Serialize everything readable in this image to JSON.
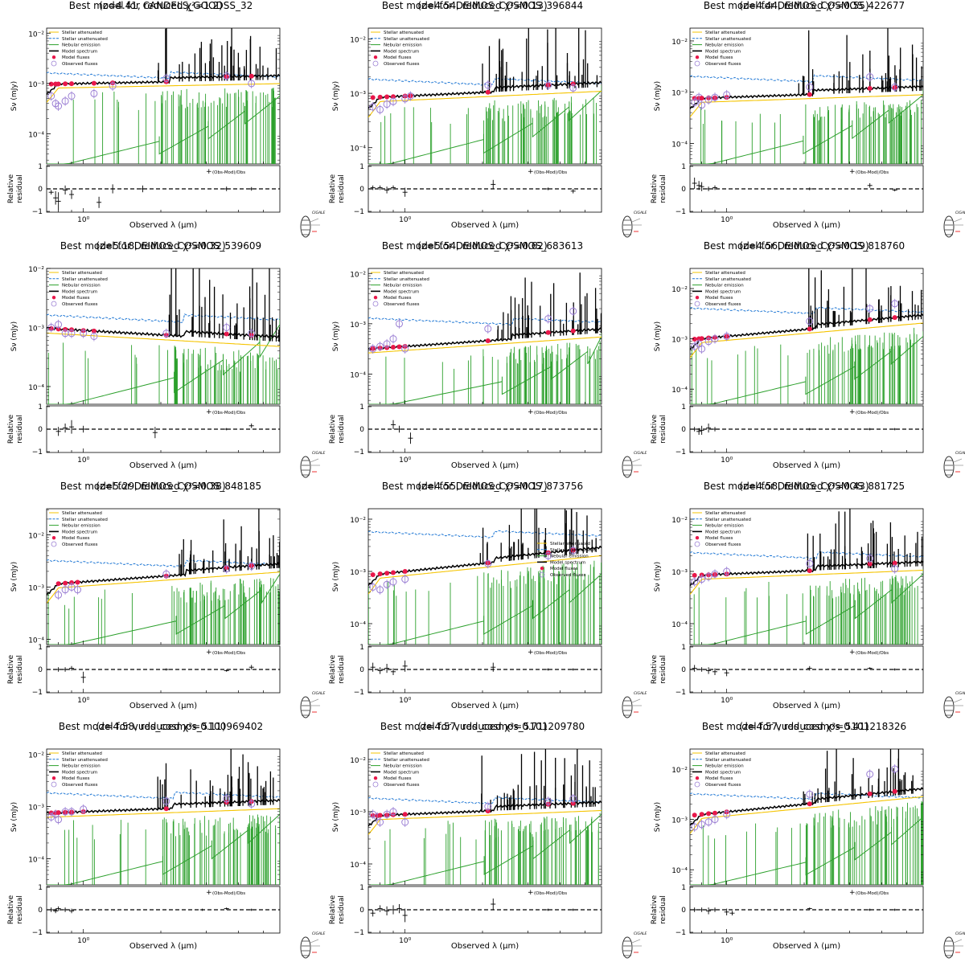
{
  "figure": {
    "legend": {
      "stellar_attenuated": "Stellar attenuated",
      "stellar_unattenuated": "Stellar unattenuated",
      "nebular_emission": "Nebular emission",
      "model_spectrum": "Model spectrum",
      "model_fluxes": "Model fluxes",
      "observed_fluxes": "Observed fluxes",
      "residual_key": "(Obs-Mod)/Obs"
    },
    "colors": {
      "stellar_attenuated": "#f5c400",
      "stellar_unattenuated": "#1f77d4",
      "nebular_emission": "#2ca02c",
      "model_spectrum": "#000000",
      "model_fluxes": "#e8174a",
      "observed_fluxes": "#9b7fd4"
    },
    "axes": {
      "ylabel_top": "Sν (mJy)",
      "ylabel_bottom_1": "Relative",
      "ylabel_bottom_2": "residual",
      "xlabel": "Observed λ (μm)",
      "x_tick": "10⁰",
      "x_scale": "log",
      "y_scale": "log",
      "resid_ticks": [
        "1",
        "0",
        "−1"
      ]
    },
    "logo": "CIGALE"
  },
  "chart_data": [
    {
      "type": "line",
      "title": "Best model for CANDELS_GOODSS_32",
      "subtitle": "(z=4.41, reduced χ²=1.2)",
      "z": 4.41,
      "chi2": 1.2,
      "yticks": [
        "10⁻²",
        "10⁻³",
        "10⁻⁴"
      ],
      "ylim_log": [
        -4.6,
        -1.9
      ],
      "continuum_log": -3.0,
      "slope": 0.1,
      "unatt_log": -2.8,
      "blue_cut": true,
      "legend_pos": "top-left",
      "obs": [
        [
          0.75,
          -3.25
        ],
        [
          0.78,
          -3.4
        ],
        [
          0.8,
          -3.45
        ],
        [
          0.85,
          -3.35
        ],
        [
          0.9,
          -3.25
        ],
        [
          1.1,
          -3.2
        ],
        [
          1.3,
          -3.05
        ],
        [
          2.1,
          -2.9
        ],
        [
          3.6,
          -2.85
        ],
        [
          4.5,
          -3.0
        ]
      ],
      "resid": [
        [
          0.75,
          -0.15,
          0.1
        ],
        [
          0.78,
          -0.4,
          0.3
        ],
        [
          0.8,
          -0.55,
          0.4
        ],
        [
          0.85,
          -0.05,
          0.2
        ],
        [
          0.9,
          -0.25,
          0.2
        ],
        [
          1.15,
          -0.6,
          0.25
        ],
        [
          1.3,
          0.0,
          0.2
        ],
        [
          1.7,
          0.0,
          0.15
        ],
        [
          3.6,
          0.0,
          0.1
        ],
        [
          4.5,
          0.0,
          0.08
        ]
      ]
    },
    {
      "type": "line",
      "title": "Best model for DEIMOS_COSMOS_396844",
      "subtitle": "(z=4.54, reduced χ²=0.13)",
      "z": 4.54,
      "chi2": 0.13,
      "yticks": [
        "10⁻²",
        "10⁻³",
        "10⁻⁴"
      ],
      "ylim_log": [
        -4.3,
        -1.8
      ],
      "continuum_log": -3.05,
      "slope": 0.22,
      "unatt_log": -2.75,
      "blue_cut": true,
      "legend_pos": "top-left",
      "obs": [
        [
          0.75,
          -3.25
        ],
        [
          0.8,
          -3.3
        ],
        [
          0.85,
          -3.2
        ],
        [
          0.9,
          -3.15
        ],
        [
          1.0,
          -3.1
        ],
        [
          1.05,
          -3.05
        ],
        [
          2.1,
          -2.85
        ],
        [
          3.6,
          -2.85
        ],
        [
          4.5,
          -2.9
        ]
      ],
      "resid": [
        [
          0.75,
          0.05,
          0.1
        ],
        [
          0.8,
          0.05,
          0.1
        ],
        [
          0.85,
          -0.05,
          0.15
        ],
        [
          0.9,
          0.05,
          0.1
        ],
        [
          1.0,
          -0.15,
          0.2
        ],
        [
          2.2,
          0.2,
          0.2
        ],
        [
          3.6,
          0.0,
          0.06
        ],
        [
          4.5,
          -0.1,
          0.1
        ]
      ]
    },
    {
      "type": "line",
      "title": "Best model for DEIMOS_COSMOS_422677",
      "subtitle": "(z=4.44, reduced χ²=0.55)",
      "z": 4.44,
      "chi2": 0.55,
      "yticks": [
        "10⁻²",
        "10⁻³",
        "10⁻⁴"
      ],
      "ylim_log": [
        -4.4,
        -1.75
      ],
      "continuum_log": -3.1,
      "slope": 0.17,
      "unatt_log": -2.7,
      "blue_cut": true,
      "legend_pos": "top-left",
      "obs": [
        [
          0.75,
          -3.2
        ],
        [
          0.78,
          -3.1
        ],
        [
          0.8,
          -3.25
        ],
        [
          0.85,
          -3.15
        ],
        [
          0.9,
          -3.1
        ],
        [
          1.0,
          -3.05
        ],
        [
          2.1,
          -2.9
        ],
        [
          3.6,
          -2.7
        ],
        [
          4.5,
          -2.9
        ]
      ],
      "resid": [
        [
          0.75,
          0.25,
          0.25
        ],
        [
          0.78,
          0.15,
          0.2
        ],
        [
          0.8,
          0.1,
          0.2
        ],
        [
          0.85,
          0.0,
          0.1
        ],
        [
          0.9,
          0.05,
          0.1
        ],
        [
          2.1,
          0.0,
          0.06
        ],
        [
          3.6,
          0.15,
          0.1
        ],
        [
          4.5,
          -0.05,
          0.06
        ]
      ]
    },
    {
      "type": "line",
      "title": "Best model for DEIMOS_COSMOS_539609",
      "subtitle": "(z=5.18, reduced χ²=0.32)",
      "z": 5.18,
      "chi2": 0.32,
      "yticks": [
        "10⁻²",
        "10⁻³",
        "10⁻⁴"
      ],
      "ylim_log": [
        -4.3,
        -2.0
      ],
      "continuum_log": -3.05,
      "slope": -0.25,
      "unatt_log": -2.8,
      "blue_cut": false,
      "legend_pos": "top-left",
      "obs": [
        [
          0.75,
          -3.0
        ],
        [
          0.8,
          -2.95
        ],
        [
          0.85,
          -3.1
        ],
        [
          0.9,
          -3.1
        ],
        [
          1.0,
          -3.1
        ],
        [
          1.1,
          -3.15
        ],
        [
          2.1,
          -3.1
        ],
        [
          3.6,
          -3.0
        ],
        [
          4.5,
          -3.1
        ]
      ],
      "resid": [
        [
          0.8,
          -0.1,
          0.2
        ],
        [
          0.85,
          0.05,
          0.2
        ],
        [
          0.9,
          0.1,
          0.3
        ],
        [
          1.0,
          0.0,
          0.15
        ],
        [
          1.9,
          -0.15,
          0.25
        ],
        [
          3.6,
          0.0,
          0.05
        ],
        [
          4.5,
          0.15,
          0.1
        ]
      ]
    },
    {
      "type": "line",
      "title": "Best model for DEIMOS_COSMOS_683613",
      "subtitle": "(z=5.54, reduced χ²=0.62)",
      "z": 5.54,
      "chi2": 0.62,
      "yticks": [
        "10⁻²",
        "10⁻³",
        "10⁻⁴"
      ],
      "ylim_log": [
        -4.6,
        -1.9
      ],
      "continuum_log": -3.45,
      "slope": 0.35,
      "unatt_log": -2.9,
      "blue_cut": false,
      "legend_pos": "top-left",
      "obs": [
        [
          0.75,
          -3.5
        ],
        [
          0.8,
          -3.45
        ],
        [
          0.85,
          -3.4
        ],
        [
          0.9,
          -3.3
        ],
        [
          0.95,
          -3.0
        ],
        [
          1.0,
          -3.5
        ],
        [
          2.1,
          -3.1
        ],
        [
          3.6,
          -2.9
        ],
        [
          4.5,
          -2.75
        ]
      ],
      "resid": [
        [
          0.9,
          0.2,
          0.2
        ],
        [
          0.95,
          0.0,
          0.15
        ],
        [
          1.05,
          -0.4,
          0.25
        ]
      ]
    },
    {
      "type": "line",
      "title": "Best model for DEIMOS_COSMOS_818760",
      "subtitle": "(z=4.56, reduced χ²=0.19)",
      "z": 4.56,
      "chi2": 0.19,
      "yticks": [
        "10⁻²",
        "10⁻³",
        "10⁻⁴"
      ],
      "ylim_log": [
        -4.3,
        -1.6
      ],
      "continuum_log": -2.95,
      "slope": 0.45,
      "unatt_log": -2.4,
      "blue_cut": true,
      "legend_pos": "top-left",
      "obs": [
        [
          0.75,
          -3.15
        ],
        [
          0.78,
          -3.1
        ],
        [
          0.8,
          -3.2
        ],
        [
          0.85,
          -3.05
        ],
        [
          0.9,
          -3.0
        ],
        [
          1.0,
          -2.95
        ],
        [
          2.1,
          -2.65
        ],
        [
          3.6,
          -2.4
        ],
        [
          4.5,
          -2.3
        ]
      ],
      "resid": [
        [
          0.75,
          0.0,
          0.1
        ],
        [
          0.78,
          -0.1,
          0.15
        ],
        [
          0.8,
          -0.05,
          0.2
        ],
        [
          0.85,
          0.05,
          0.2
        ],
        [
          0.9,
          0.0,
          0.1
        ],
        [
          2.1,
          0.0,
          0.05
        ],
        [
          3.6,
          0.0,
          0.05
        ],
        [
          4.5,
          0.0,
          0.05
        ]
      ]
    },
    {
      "type": "line",
      "title": "Best model for DEIMOS_COSMOS_848185",
      "subtitle": "(z=5.29, reduced χ²=0.38)",
      "z": 5.29,
      "chi2": 0.38,
      "yticks": [
        "10⁻²",
        "10⁻³",
        "10⁻⁴"
      ],
      "ylim_log": [
        -4.1,
        -1.5
      ],
      "continuum_log": -2.9,
      "slope": 0.35,
      "unatt_log": -2.5,
      "blue_cut": true,
      "legend_pos": "top-left",
      "obs": [
        [
          0.8,
          -3.15
        ],
        [
          0.85,
          -3.05
        ],
        [
          0.9,
          -3.0
        ],
        [
          0.95,
          -3.05
        ],
        [
          2.1,
          -2.75
        ],
        [
          3.6,
          -2.65
        ],
        [
          4.5,
          -2.6
        ]
      ],
      "resid": [
        [
          0.8,
          0.0,
          0.1
        ],
        [
          0.85,
          0.0,
          0.1
        ],
        [
          0.9,
          0.05,
          0.1
        ],
        [
          1.0,
          -0.35,
          0.25
        ],
        [
          2.1,
          0.0,
          0.05
        ],
        [
          3.6,
          -0.05,
          0.05
        ],
        [
          4.5,
          0.1,
          0.1
        ]
      ]
    },
    {
      "type": "line",
      "title": "Best model for DEIMOS_COSMOS_873756",
      "subtitle": "(z=4.55, reduced χ²=0.17)",
      "z": 4.55,
      "chi2": 0.17,
      "yticks": [
        "10⁻²",
        "10⁻³",
        "10⁻⁴"
      ],
      "ylim_log": [
        -4.4,
        -1.8
      ],
      "continuum_log": -3.0,
      "slope": 0.5,
      "unatt_log": -2.25,
      "blue_cut": true,
      "legend_pos": "center-right",
      "obs": [
        [
          0.75,
          -3.3
        ],
        [
          0.8,
          -3.35
        ],
        [
          0.85,
          -3.25
        ],
        [
          0.9,
          -3.2
        ],
        [
          1.0,
          -3.15
        ],
        [
          2.1,
          -2.85
        ],
        [
          3.6,
          -2.7
        ],
        [
          4.5,
          -2.6
        ]
      ],
      "resid": [
        [
          0.75,
          0.1,
          0.2
        ],
        [
          0.8,
          -0.05,
          0.15
        ],
        [
          0.85,
          0.05,
          0.2
        ],
        [
          0.9,
          -0.1,
          0.15
        ],
        [
          1.0,
          0.15,
          0.25
        ],
        [
          2.2,
          0.1,
          0.2
        ],
        [
          3.6,
          0.0,
          0.05
        ],
        [
          4.5,
          0.0,
          0.05
        ]
      ]
    },
    {
      "type": "line",
      "title": "Best model for DEIMOS_COSMOS_881725",
      "subtitle": "(z=4.58, reduced χ²=0.43)",
      "z": 4.58,
      "chi2": 0.43,
      "yticks": [
        "10⁻²",
        "10⁻³",
        "10⁻⁴"
      ],
      "ylim_log": [
        -4.4,
        -1.8
      ],
      "continuum_log": -3.05,
      "slope": 0.2,
      "unatt_log": -2.65,
      "blue_cut": true,
      "legend_pos": "top-left",
      "obs": [
        [
          0.75,
          -3.2
        ],
        [
          0.8,
          -3.15
        ],
        [
          0.85,
          -3.1
        ],
        [
          0.9,
          -3.05
        ],
        [
          1.0,
          -3.0
        ],
        [
          2.1,
          -2.85
        ],
        [
          3.6,
          -2.75
        ],
        [
          4.5,
          -2.95
        ]
      ],
      "resid": [
        [
          0.75,
          0.05,
          0.15
        ],
        [
          0.8,
          0.0,
          0.1
        ],
        [
          0.85,
          -0.05,
          0.15
        ],
        [
          0.9,
          -0.1,
          0.15
        ],
        [
          1.0,
          -0.15,
          0.15
        ],
        [
          2.1,
          0.05,
          0.1
        ],
        [
          3.6,
          0.05,
          0.05
        ],
        [
          4.5,
          0.0,
          0.05
        ]
      ]
    },
    {
      "type": "line",
      "title": "Best model for vuds_cosmos_5100969402",
      "subtitle": "(z=4.58, reduced χ²=0.11)",
      "z": 4.58,
      "chi2": 0.11,
      "yticks": [
        "10⁻²",
        "10⁻³",
        "10⁻⁴"
      ],
      "ylim_log": [
        -4.5,
        -1.9
      ],
      "continuum_log": -3.1,
      "slope": 0.18,
      "unatt_log": -2.75,
      "blue_cut": false,
      "legend_pos": "top-left",
      "obs": [
        [
          0.75,
          -3.2
        ],
        [
          0.78,
          -3.15
        ],
        [
          0.8,
          -3.25
        ],
        [
          0.85,
          -3.1
        ],
        [
          0.9,
          -3.1
        ],
        [
          1.0,
          -3.05
        ],
        [
          2.1,
          -2.9
        ],
        [
          3.6,
          -2.85
        ],
        [
          4.5,
          -2.95
        ]
      ],
      "resid": [
        [
          0.75,
          0.0,
          0.1
        ],
        [
          0.78,
          -0.05,
          0.1
        ],
        [
          0.8,
          0.05,
          0.1
        ],
        [
          0.85,
          0.0,
          0.1
        ],
        [
          0.9,
          -0.05,
          0.1
        ],
        [
          2.9,
          0.0,
          0.05
        ],
        [
          3.6,
          0.05,
          0.05
        ],
        [
          4.5,
          0.0,
          0.05
        ]
      ]
    },
    {
      "type": "line",
      "title": "Best model for vuds_cosmos_5101209780",
      "subtitle": "(z=4.57, reduced χ²=0.71)",
      "z": 4.57,
      "chi2": 0.71,
      "yticks": [
        "10⁻²",
        "10⁻³",
        "10⁻⁴"
      ],
      "ylim_log": [
        -4.4,
        -1.8
      ],
      "continuum_log": -3.05,
      "slope": 0.2,
      "unatt_log": -2.75,
      "blue_cut": true,
      "legend_pos": "top-left",
      "obs": [
        [
          0.75,
          -3.05
        ],
        [
          0.78,
          -3.1
        ],
        [
          0.8,
          -3.2
        ],
        [
          0.85,
          -3.05
        ],
        [
          0.9,
          -3.0
        ],
        [
          1.0,
          -3.2
        ],
        [
          2.1,
          -2.9
        ],
        [
          3.6,
          -2.8
        ],
        [
          4.5,
          -2.75
        ]
      ],
      "resid": [
        [
          0.75,
          -0.15,
          0.15
        ],
        [
          0.8,
          0.05,
          0.15
        ],
        [
          0.85,
          -0.05,
          0.2
        ],
        [
          0.9,
          0.0,
          0.2
        ],
        [
          0.95,
          0.05,
          0.2
        ],
        [
          1.0,
          -0.25,
          0.3
        ],
        [
          2.2,
          0.25,
          0.25
        ],
        [
          3.6,
          0.0,
          0.05
        ],
        [
          4.5,
          0.0,
          0.05
        ]
      ]
    },
    {
      "type": "line",
      "title": "Best model for vuds_cosmos_5101218326",
      "subtitle": "(z=4.57, reduced χ²=0.41)",
      "z": 4.57,
      "chi2": 0.41,
      "yticks": [
        "10⁻²",
        "10⁻³",
        "10⁻⁴"
      ],
      "ylim_log": [
        -4.3,
        -1.6
      ],
      "continuum_log": -2.85,
      "slope": 0.5,
      "unatt_log": -2.5,
      "blue_cut": true,
      "legend_pos": "top-left",
      "obs": [
        [
          0.75,
          -3.15
        ],
        [
          0.8,
          -3.1
        ],
        [
          0.85,
          -3.05
        ],
        [
          0.9,
          -3.0
        ],
        [
          1.0,
          -2.9
        ],
        [
          2.1,
          -2.5
        ],
        [
          3.6,
          -2.1
        ],
        [
          4.5,
          -2.0
        ]
      ],
      "resid": [
        [
          0.75,
          0.0,
          0.1
        ],
        [
          0.8,
          0.0,
          0.1
        ],
        [
          0.85,
          -0.05,
          0.15
        ],
        [
          0.9,
          0.0,
          0.1
        ],
        [
          1.0,
          -0.1,
          0.15
        ],
        [
          1.05,
          -0.15,
          0.1
        ],
        [
          2.1,
          0.05,
          0.05
        ],
        [
          3.6,
          0.0,
          0.05
        ],
        [
          4.5,
          0.0,
          0.05
        ]
      ]
    }
  ]
}
